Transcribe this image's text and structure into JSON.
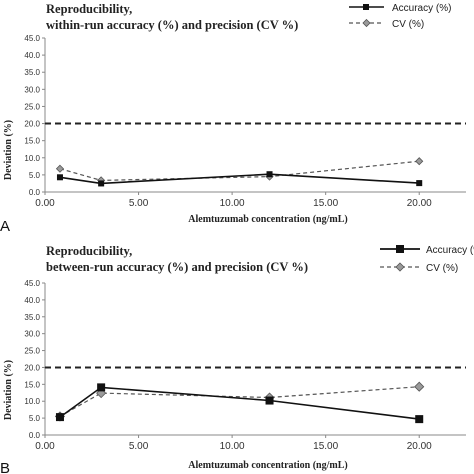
{
  "chart_data": [
    {
      "type": "line",
      "panel_label": "A",
      "title_lines": [
        "Reproducibility,",
        "within-run accuracy (%) and precision (CV %)"
      ],
      "xlabel": "Alemtuzumab concentration (ng/mL)",
      "ylabel": "Deviation (%)",
      "xlim": [
        0,
        22.5
      ],
      "ylim": [
        0,
        45
      ],
      "xticks": [
        "0.00",
        "5.00",
        "10.00",
        "15.00",
        "20.00"
      ],
      "yticks": [
        "0.0",
        "5.0",
        "10.0",
        "15.0",
        "20.0",
        "25.0",
        "30.0",
        "35.0",
        "40.0",
        "45.0"
      ],
      "reference_line": 20,
      "grid": false,
      "legend_position": "top-right",
      "series": [
        {
          "name": "Accuracy (%)",
          "color": "#111111",
          "marker": "square",
          "dash": "solid",
          "x": [
            0.8,
            3,
            12,
            20
          ],
          "y": [
            4.3,
            2.5,
            5.2,
            2.6
          ]
        },
        {
          "name": "CV (%)",
          "color": "#555555",
          "marker": "diamond",
          "dash": "dashed",
          "x": [
            0.8,
            3,
            12,
            20
          ],
          "y": [
            6.8,
            3.4,
            4.5,
            9.0
          ]
        }
      ]
    },
    {
      "type": "line",
      "panel_label": "B",
      "title_lines": [
        "Reproducibility,",
        "between-run accuracy (%) and precision (CV %)"
      ],
      "xlabel": "Alemtuzumab concentration (ng/mL)",
      "ylabel": "Deviation (%)",
      "xlim": [
        0,
        22.5
      ],
      "ylim": [
        0,
        45
      ],
      "xticks": [
        "0.00",
        "5.00",
        "10.00",
        "15.00",
        "20.00"
      ],
      "yticks": [
        "0.0",
        "5.0",
        "10.0",
        "15.0",
        "20.0",
        "25.0",
        "30.0",
        "35.0",
        "40.0",
        "45.0"
      ],
      "reference_line": 20,
      "grid": false,
      "legend_position": "top-right",
      "series": [
        {
          "name": "Accuracy (%)",
          "color": "#111111",
          "marker": "square",
          "dash": "solid",
          "x": [
            0.8,
            3,
            12,
            20
          ],
          "y": [
            5.3,
            14.1,
            10.2,
            4.7
          ]
        },
        {
          "name": "CV (%)",
          "color": "#555555",
          "marker": "diamond",
          "dash": "dashed",
          "x": [
            0.8,
            3,
            12,
            20
          ],
          "y": [
            5.5,
            12.4,
            11.1,
            14.3
          ]
        }
      ]
    }
  ]
}
